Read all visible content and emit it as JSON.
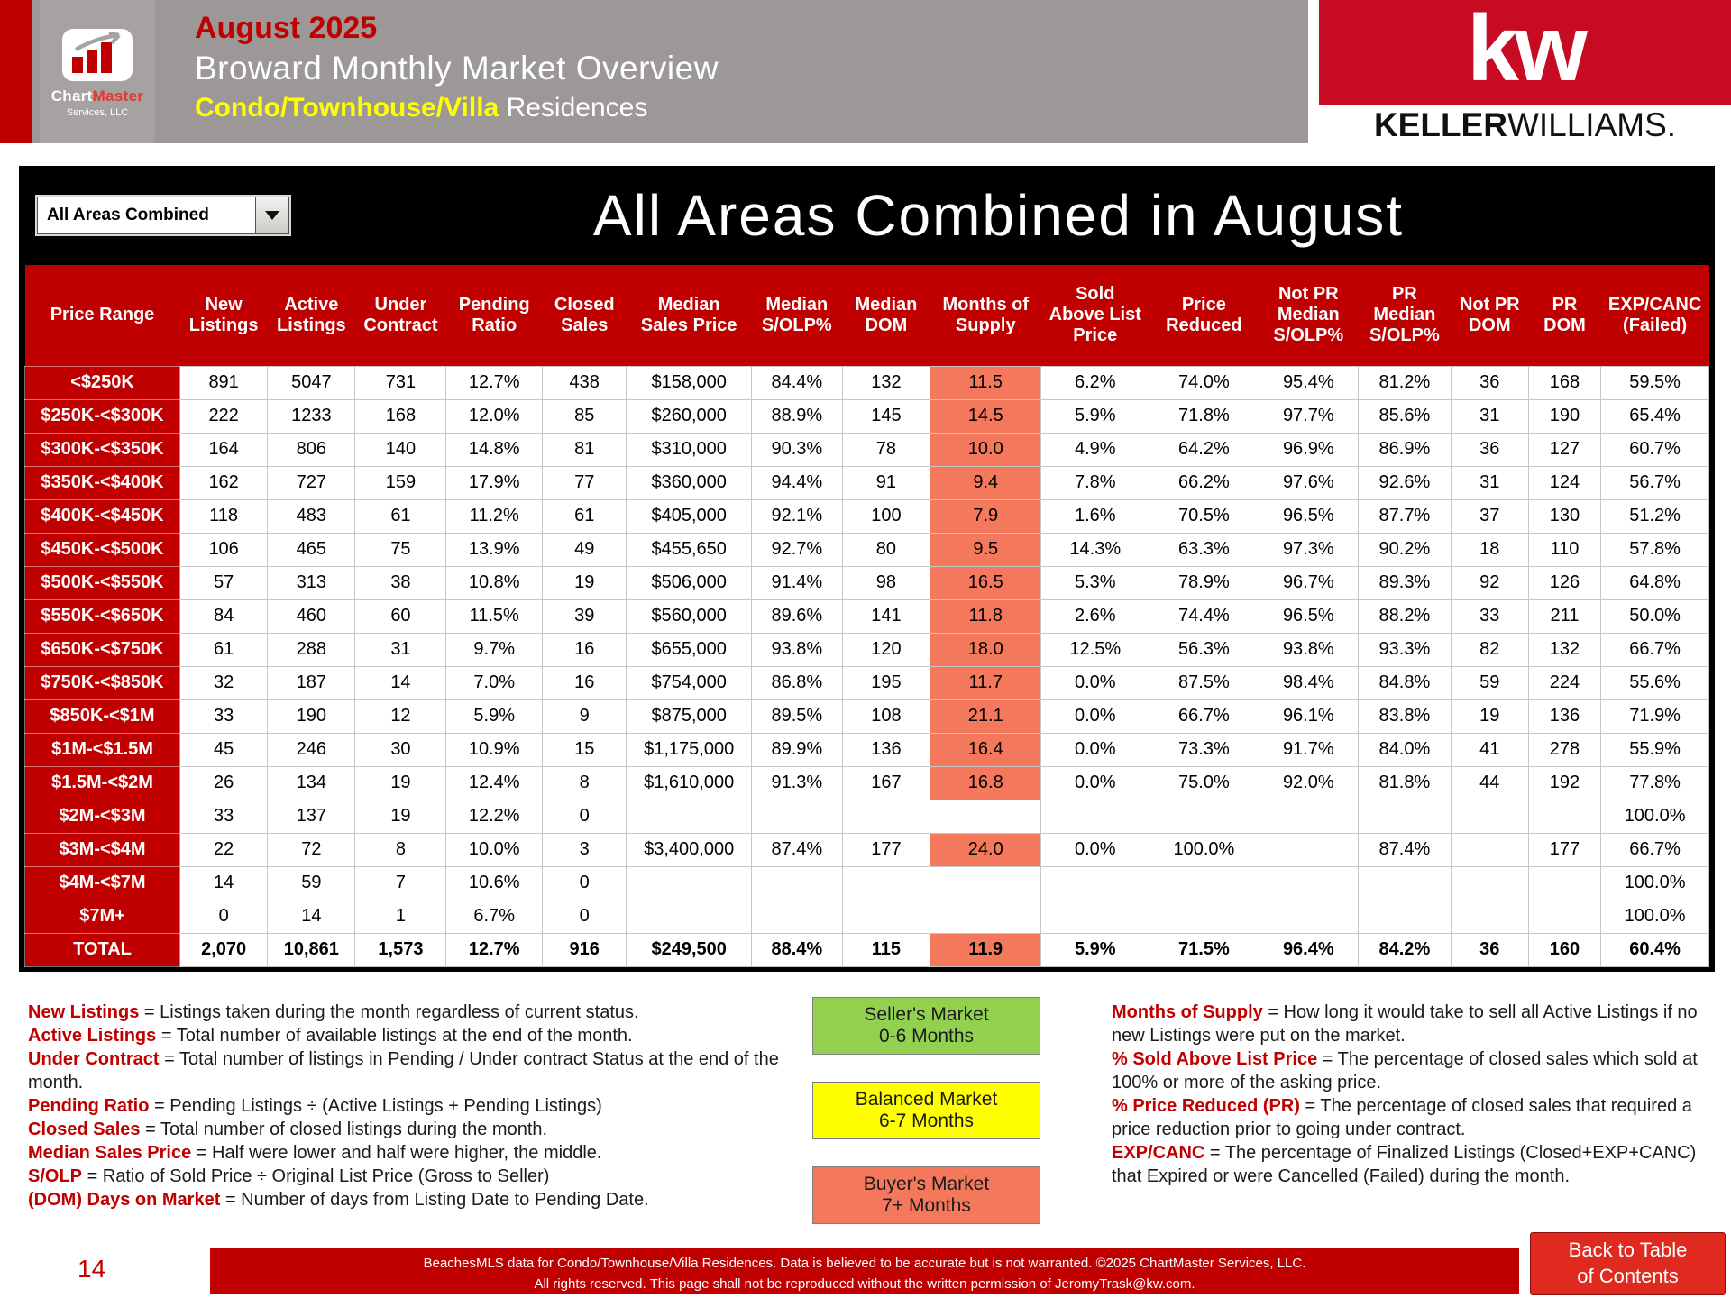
{
  "colors": {
    "accent_red": "#c00000",
    "kw_red": "#c70b22",
    "supply_orange": "#f4795c",
    "seller_green": "#92d050",
    "balanced_yellow": "#ffff00",
    "header_gray": "#9b9897"
  },
  "header": {
    "date": "August 2025",
    "title": "Broward Monthly Market Overview",
    "subtitle_highlight": "Condo/Townhouse/Villa",
    "subtitle_rest": " Residences",
    "logo": {
      "name_part1": "Chart",
      "name_part2": "Master",
      "subtitle": "Services, LLC"
    },
    "kw_logo": {
      "monogram": "kw",
      "name_bold": "KELLER",
      "name_regular": "WILLIAMS."
    }
  },
  "controls": {
    "area_dropdown_value": "All Areas Combined"
  },
  "table": {
    "title": "All Areas Combined in August",
    "columns": [
      "Price Range",
      "New\nListings",
      "Active\nListings",
      "Under\nContract",
      "Pending\nRatio",
      "Closed\nSales",
      "Median\nSales Price",
      "Median\nS/OLP%",
      "Median\nDOM",
      "Months of\nSupply",
      "Sold\nAbove List\nPrice",
      "Price\nReduced",
      "Not PR\nMedian\nS/OLP%",
      "PR\nMedian\nS/OLP%",
      "Not PR\nDOM",
      "PR\nDOM",
      "EXP/CANC\n(Failed)"
    ],
    "rows": [
      {
        "label": "<$250K",
        "cells": [
          "891",
          "5047",
          "731",
          "12.7%",
          "438",
          "$158,000",
          "84.4%",
          "132",
          "11.5",
          "6.2%",
          "74.0%",
          "95.4%",
          "81.2%",
          "36",
          "168",
          "59.5%"
        ],
        "supply_highlight": true
      },
      {
        "label": "$250K-<$300K",
        "cells": [
          "222",
          "1233",
          "168",
          "12.0%",
          "85",
          "$260,000",
          "88.9%",
          "145",
          "14.5",
          "5.9%",
          "71.8%",
          "97.7%",
          "85.6%",
          "31",
          "190",
          "65.4%"
        ],
        "supply_highlight": true
      },
      {
        "label": "$300K-<$350K",
        "cells": [
          "164",
          "806",
          "140",
          "14.8%",
          "81",
          "$310,000",
          "90.3%",
          "78",
          "10.0",
          "4.9%",
          "64.2%",
          "96.9%",
          "86.9%",
          "36",
          "127",
          "60.7%"
        ],
        "supply_highlight": true
      },
      {
        "label": "$350K-<$400K",
        "cells": [
          "162",
          "727",
          "159",
          "17.9%",
          "77",
          "$360,000",
          "94.4%",
          "91",
          "9.4",
          "7.8%",
          "66.2%",
          "97.6%",
          "92.6%",
          "31",
          "124",
          "56.7%"
        ],
        "supply_highlight": true
      },
      {
        "label": "$400K-<$450K",
        "cells": [
          "118",
          "483",
          "61",
          "11.2%",
          "61",
          "$405,000",
          "92.1%",
          "100",
          "7.9",
          "1.6%",
          "70.5%",
          "96.5%",
          "87.7%",
          "37",
          "130",
          "51.2%"
        ],
        "supply_highlight": true
      },
      {
        "label": "$450K-<$500K",
        "cells": [
          "106",
          "465",
          "75",
          "13.9%",
          "49",
          "$455,650",
          "92.7%",
          "80",
          "9.5",
          "14.3%",
          "63.3%",
          "97.3%",
          "90.2%",
          "18",
          "110",
          "57.8%"
        ],
        "supply_highlight": true
      },
      {
        "label": "$500K-<$550K",
        "cells": [
          "57",
          "313",
          "38",
          "10.8%",
          "19",
          "$506,000",
          "91.4%",
          "98",
          "16.5",
          "5.3%",
          "78.9%",
          "96.7%",
          "89.3%",
          "92",
          "126",
          "64.8%"
        ],
        "supply_highlight": true
      },
      {
        "label": "$550K-<$650K",
        "cells": [
          "84",
          "460",
          "60",
          "11.5%",
          "39",
          "$560,000",
          "89.6%",
          "141",
          "11.8",
          "2.6%",
          "74.4%",
          "96.5%",
          "88.2%",
          "33",
          "211",
          "50.0%"
        ],
        "supply_highlight": true
      },
      {
        "label": "$650K-<$750K",
        "cells": [
          "61",
          "288",
          "31",
          "9.7%",
          "16",
          "$655,000",
          "93.8%",
          "120",
          "18.0",
          "12.5%",
          "56.3%",
          "93.8%",
          "93.3%",
          "82",
          "132",
          "66.7%"
        ],
        "supply_highlight": true
      },
      {
        "label": "$750K-<$850K",
        "cells": [
          "32",
          "187",
          "14",
          "7.0%",
          "16",
          "$754,000",
          "86.8%",
          "195",
          "11.7",
          "0.0%",
          "87.5%",
          "98.4%",
          "84.8%",
          "59",
          "224",
          "55.6%"
        ],
        "supply_highlight": true
      },
      {
        "label": "$850K-<$1M",
        "cells": [
          "33",
          "190",
          "12",
          "5.9%",
          "9",
          "$875,000",
          "89.5%",
          "108",
          "21.1",
          "0.0%",
          "66.7%",
          "96.1%",
          "83.8%",
          "19",
          "136",
          "71.9%"
        ],
        "supply_highlight": true
      },
      {
        "label": "$1M-<$1.5M",
        "cells": [
          "45",
          "246",
          "30",
          "10.9%",
          "15",
          "$1,175,000",
          "89.9%",
          "136",
          "16.4",
          "0.0%",
          "73.3%",
          "91.7%",
          "84.0%",
          "41",
          "278",
          "55.9%"
        ],
        "supply_highlight": true
      },
      {
        "label": "$1.5M-<$2M",
        "cells": [
          "26",
          "134",
          "19",
          "12.4%",
          "8",
          "$1,610,000",
          "91.3%",
          "167",
          "16.8",
          "0.0%",
          "75.0%",
          "92.0%",
          "81.8%",
          "44",
          "192",
          "77.8%"
        ],
        "supply_highlight": true
      },
      {
        "label": "$2M-<$3M",
        "cells": [
          "33",
          "137",
          "19",
          "12.2%",
          "0",
          "",
          "",
          "",
          "",
          "",
          "",
          "",
          "",
          "",
          "",
          "100.0%"
        ],
        "supply_highlight": false
      },
      {
        "label": "$3M-<$4M",
        "cells": [
          "22",
          "72",
          "8",
          "10.0%",
          "3",
          "$3,400,000",
          "87.4%",
          "177",
          "24.0",
          "0.0%",
          "100.0%",
          "",
          "87.4%",
          "",
          "177",
          "66.7%"
        ],
        "supply_highlight": true
      },
      {
        "label": "$4M-<$7M",
        "cells": [
          "14",
          "59",
          "7",
          "10.6%",
          "0",
          "",
          "",
          "",
          "",
          "",
          "",
          "",
          "",
          "",
          "",
          "100.0%"
        ],
        "supply_highlight": false
      },
      {
        "label": "$7M+",
        "cells": [
          "0",
          "14",
          "1",
          "6.7%",
          "0",
          "",
          "",
          "",
          "",
          "",
          "",
          "",
          "",
          "",
          "",
          "100.0%"
        ],
        "supply_highlight": false
      },
      {
        "label": "TOTAL",
        "cells": [
          "2,070",
          "10,861",
          "1,573",
          "12.7%",
          "916",
          "$249,500",
          "88.4%",
          "115",
          "11.9",
          "5.9%",
          "71.5%",
          "96.4%",
          "84.2%",
          "36",
          "160",
          "60.4%"
        ],
        "supply_highlight": true,
        "total": true
      }
    ]
  },
  "legend": {
    "left_definitions": [
      {
        "term": "New Listings",
        "text": " = Listings taken during the month regardless of current status."
      },
      {
        "term": "Active Listings",
        "text": " = Total number of available listings at the end of the month."
      },
      {
        "term": "Under Contract",
        "text": " = Total number of listings in Pending / Under contract Status at the end of the month."
      },
      {
        "term": "Pending Ratio",
        "text": " = Pending Listings ÷ (Active Listings + Pending Listings)"
      },
      {
        "term": "Closed Sales",
        "text": " = Total number of closed listings during the month."
      },
      {
        "term": "Median Sales Price",
        "text": " = Half were lower and half were higher, the middle."
      },
      {
        "term": "S/OLP",
        "text": " = Ratio of Sold Price ÷ Original List Price (Gross to Seller)"
      },
      {
        "term": "(DOM) Days on Market",
        "text": " = Number of days from Listing Date to Pending Date."
      }
    ],
    "market_boxes": [
      {
        "line1": "Seller's Market",
        "line2": "0-6 Months",
        "color": "#92d050"
      },
      {
        "line1": "Balanced Market",
        "line2": "6-7 Months",
        "color": "#ffff00"
      },
      {
        "line1": "Buyer's Market",
        "line2": "7+ Months",
        "color": "#f4795c"
      }
    ],
    "right_definitions": [
      {
        "term": "Months of Supply",
        "text": " = How long it would take to sell all Active Listings if no new Listings were put on the market."
      },
      {
        "term": "% Sold Above List Price",
        "text": " = The percentage of closed sales which sold at 100% or more of the asking price."
      },
      {
        "term": "% Price Reduced (PR)",
        "text": " = The percentage of closed sales that required a price reduction prior to going under contract."
      },
      {
        "term": "EXP/CANC",
        "text": " = The percentage of Finalized Listings (Closed+EXP+CANC) that Expired or were Cancelled (Failed) during the month."
      }
    ]
  },
  "footer": {
    "page_number": "14",
    "copyright_line1": "BeachesMLS data for Condo/Townhouse/Villa Residences.  Data is believed to be accurate but is not warranted.  ©2025  ChartMaster Services, LLC.",
    "copyright_line2": "All rights reserved. This page shall not be reproduced without the written permission of JeromyTrask@kw.com.",
    "back_button_line1": "Back to Table",
    "back_button_line2": "of Contents"
  }
}
